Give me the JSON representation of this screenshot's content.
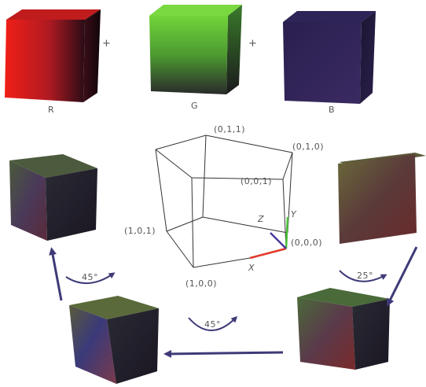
{
  "top_row": {
    "cubes": [
      {
        "label": "R",
        "color": "#e8211b"
      },
      {
        "label": "G",
        "color": "#6fd13a"
      },
      {
        "label": "B",
        "color": "#3a2a66"
      }
    ],
    "operator_1": "+",
    "operator_2": "+"
  },
  "coordinate_cube": {
    "vertex_011": "(0,1,1)",
    "vertex_010": "(0,1,0)",
    "vertex_001": "(0,0,1)",
    "vertex_101": "(1,0,1)",
    "vertex_000": "(0,0,0)",
    "vertex_100": "(1,0,0)",
    "axis_x": "X",
    "axis_y": "Y",
    "axis_z": "Z",
    "axis_x_color": "#e03a2a",
    "axis_y_color": "#4cc23a",
    "axis_z_color": "#4a3a9a"
  },
  "rotations": {
    "right": "25°",
    "bottom": "45°",
    "left": "45°"
  },
  "arrow_color": "#3e3a78"
}
